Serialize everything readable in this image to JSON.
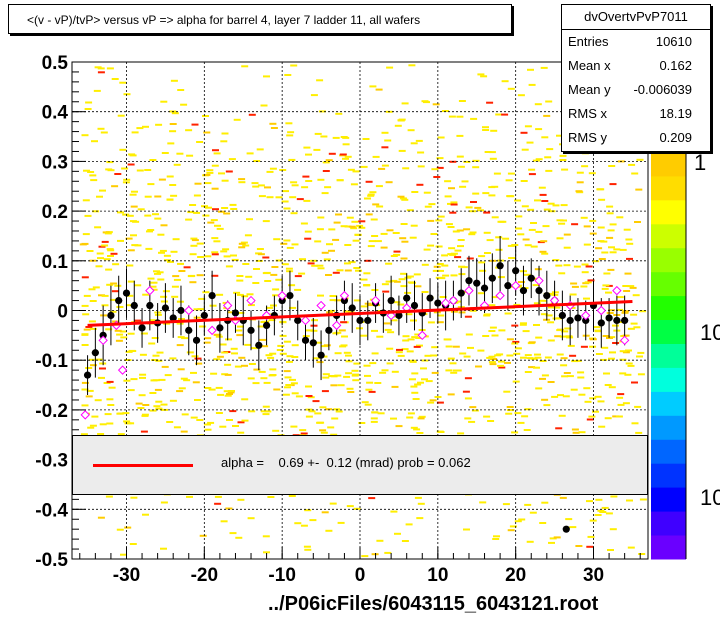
{
  "title": "<(v - vP)/tvP> versus   vP => alpha for barrel 4, layer 7 ladder 11, all wafers",
  "stats": {
    "name": "dvOvertvPvP7011",
    "rows": [
      {
        "label": "Entries",
        "value": "10610"
      },
      {
        "label": "Mean x",
        "value": "0.162"
      },
      {
        "label": "Mean y",
        "value": "-0.006039"
      },
      {
        "label": "RMS x",
        "value": "18.19"
      },
      {
        "label": "RMS y",
        "value": "0.209"
      }
    ]
  },
  "legend": {
    "text": "alpha =    0.69 +-  0.12 (mrad) prob = 0.062",
    "line_color": "#ff0000"
  },
  "footer": "../P06icFiles/6043115_6043121.root",
  "colorbar_labels": [
    "1",
    "10",
    "10"
  ],
  "chart_data": {
    "type": "scatter",
    "title": "<(v - vP)/tvP> versus   vP => alpha for barrel 4, layer 7 ladder 11, all wafers",
    "xlim": [
      -37,
      37
    ],
    "ylim": [
      -0.5,
      0.5
    ],
    "xticks": [
      -30,
      -20,
      -10,
      0,
      10,
      20,
      30
    ],
    "yticks": [
      -0.5,
      -0.4,
      -0.3,
      -0.2,
      -0.1,
      0,
      0.1,
      0.2,
      0.3,
      0.4,
      0.5
    ],
    "xtick_labels": [
      "-30",
      "-20",
      "-10",
      "0",
      "10",
      "20",
      "30"
    ],
    "ytick_labels": [
      "-0.5",
      "-0.4",
      "-0.3",
      "-0.2",
      "-0.1",
      "0",
      "0.1",
      "0.2",
      "0.3",
      "0.4",
      "0.5"
    ],
    "grid": true,
    "fit_line": {
      "x": [
        -35,
        35
      ],
      "y": [
        -0.03,
        0.018
      ],
      "color": "#ff0000"
    },
    "profile_points": {
      "x": [
        -35,
        -34,
        -33,
        -32,
        -31,
        -30,
        -29,
        -28,
        -27,
        -26,
        -25,
        -24,
        -23,
        -22,
        -21,
        -20,
        -19,
        -18,
        -17,
        -16,
        -15,
        -14,
        -13,
        -12,
        -11,
        -10,
        -9,
        -8,
        -7,
        -6,
        -5,
        -4,
        -3,
        -2,
        -1,
        0,
        1,
        2,
        3,
        4,
        5,
        6,
        7,
        8,
        9,
        10,
        11,
        12,
        13,
        14,
        15,
        16,
        17,
        18,
        19,
        20,
        21,
        22,
        23,
        24,
        25,
        26,
        27,
        28,
        29,
        30,
        31,
        32,
        33,
        34
      ],
      "y": [
        -0.13,
        -0.085,
        -0.05,
        -0.01,
        0.02,
        0.035,
        0.01,
        -0.035,
        0.01,
        -0.025,
        0.005,
        -0.015,
        0.0,
        -0.04,
        -0.06,
        -0.01,
        0.03,
        -0.035,
        -0.02,
        -0.005,
        -0.02,
        -0.04,
        -0.07,
        -0.03,
        -0.01,
        0.02,
        0.03,
        -0.02,
        -0.06,
        -0.065,
        -0.09,
        -0.04,
        -0.01,
        0.02,
        0.005,
        -0.02,
        -0.02,
        0.015,
        -0.005,
        0.02,
        -0.01,
        0.025,
        0.01,
        -0.005,
        0.025,
        0.015,
        0.01,
        0.02,
        0.035,
        0.06,
        0.055,
        0.045,
        0.065,
        0.09,
        0.05,
        0.08,
        0.04,
        0.065,
        0.04,
        0.03,
        0.02,
        -0.01,
        -0.02,
        -0.015,
        -0.02,
        0.01,
        -0.025,
        -0.015,
        -0.02,
        -0.02
      ],
      "err": [
        0.04,
        0.05,
        0.06,
        0.06,
        0.05,
        0.05,
        0.05,
        0.04,
        0.05,
        0.04,
        0.05,
        0.04,
        0.05,
        0.05,
        0.05,
        0.04,
        0.05,
        0.05,
        0.04,
        0.04,
        0.05,
        0.04,
        0.05,
        0.04,
        0.04,
        0.05,
        0.05,
        0.04,
        0.04,
        0.05,
        0.05,
        0.04,
        0.04,
        0.04,
        0.05,
        0.05,
        0.04,
        0.04,
        0.04,
        0.05,
        0.04,
        0.05,
        0.05,
        0.04,
        0.04,
        0.04,
        0.05,
        0.04,
        0.05,
        0.05,
        0.05,
        0.05,
        0.05,
        0.06,
        0.05,
        0.05,
        0.05,
        0.04,
        0.05,
        0.05,
        0.04,
        0.05,
        0.05,
        0.04,
        0.04,
        0.05,
        0.05,
        0.04,
        0.05,
        0.05
      ]
    },
    "open_markers": {
      "x": [
        -35.3,
        -33,
        -31.3,
        -30.5,
        -27,
        -22,
        -19,
        -17,
        -16,
        -14,
        -12,
        -10,
        -7,
        -5,
        -3,
        -2,
        2,
        4,
        6,
        8,
        11,
        12,
        14,
        16,
        18,
        20,
        23,
        25,
        27,
        29,
        31,
        33,
        34
      ],
      "y": [
        -0.21,
        -0.06,
        -0.03,
        -0.12,
        0.04,
        0.0,
        -0.04,
        0.01,
        -0.02,
        0.02,
        -0.01,
        0.03,
        -0.02,
        0.01,
        -0.03,
        0.03,
        0.02,
        -0.01,
        0.005,
        -0.05,
        0.015,
        0.02,
        0.04,
        0.01,
        0.03,
        0.05,
        0.06,
        0.02,
        0.01,
        -0.01,
        0.0,
        0.04,
        -0.06
      ]
    },
    "outlier": {
      "x": 26.5,
      "y": -0.44
    },
    "colorbar": {
      "colors": [
        "#6a00ff",
        "#3f00ff",
        "#0000ff",
        "#0033ff",
        "#0066ff",
        "#0099ff",
        "#00ccff",
        "#00ffdd",
        "#00ff99",
        "#00ff44",
        "#22ff00",
        "#66ff00",
        "#99ff00",
        "#ccff00",
        "#ffff00",
        "#ffdd00",
        "#ffcc00"
      ]
    }
  }
}
